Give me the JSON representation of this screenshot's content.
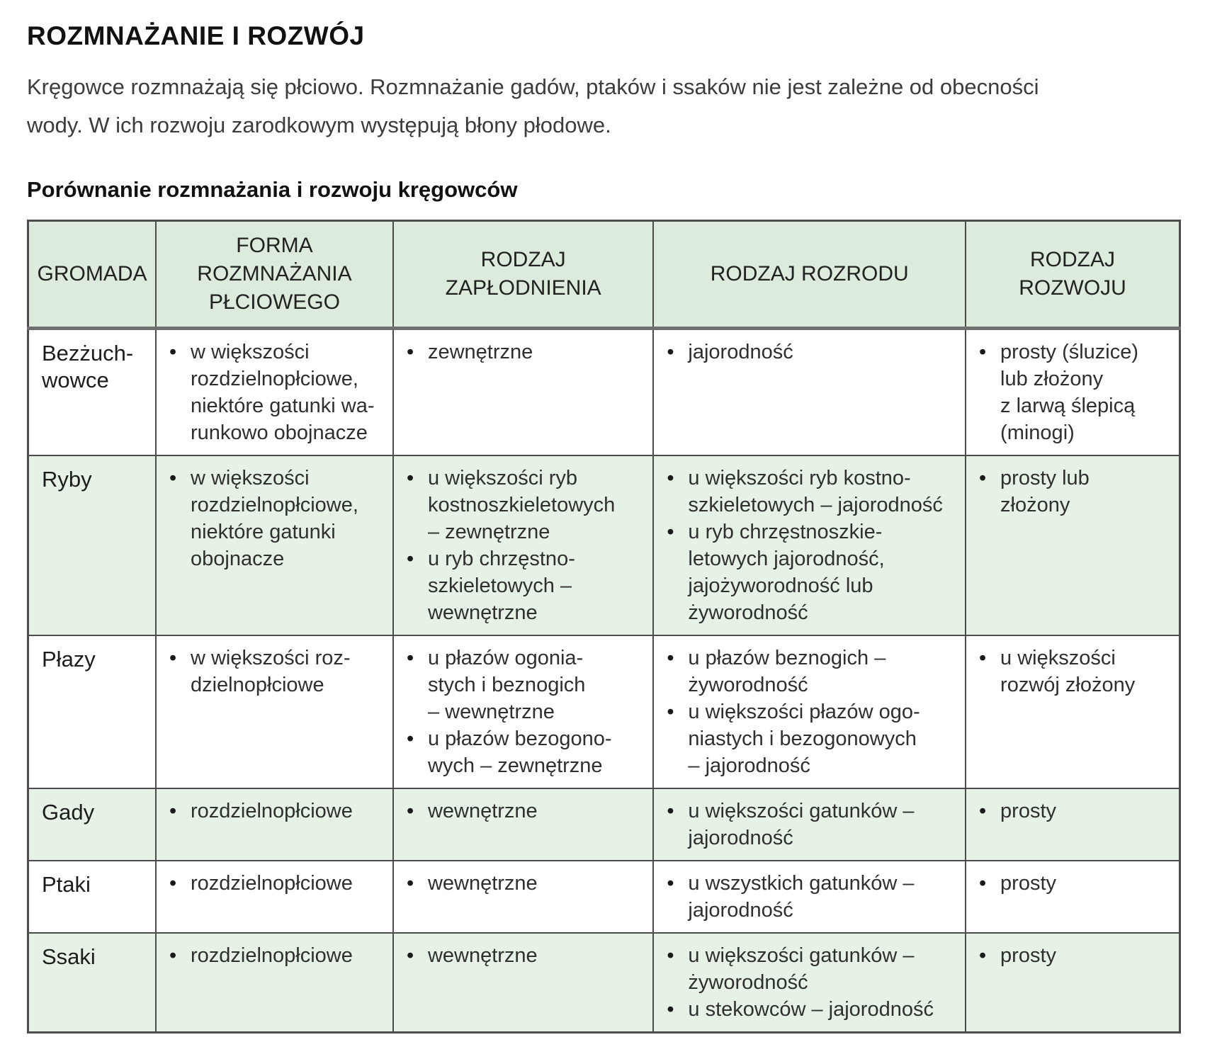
{
  "header": {
    "title": "ROZMNAŻANIE I ROZWÓJ",
    "intro": "Kręgowce rozmnażają się płciowo. Rozmnażanie gadów, ptaków i ssaków nie jest zależne od obecności\nwody. W ich rozwoju zarodkowym występują błony płodowe."
  },
  "colors": {
    "header_background": "#dcebdb",
    "stripe_background": "#e7f2e7",
    "border": "#4c4c4c",
    "thick_border": "#6f6f6f"
  },
  "table": {
    "caption": "Porównanie rozmnażania i rozwoju kręgowców",
    "columns": [
      "GROMADA",
      "FORMA\nROZMNAŻANIA\nPŁCIOWEGO",
      "RODZAJ\nZAPŁODNIENIA",
      "RODZAJ ROZRODU",
      "RODZAJ\nROZWOJU"
    ],
    "rows": [
      {
        "group": "Bezżuch-\nwowce",
        "cells": [
          [
            "w większości\nrozdzielnopłciowe,\nniektóre gatunki wa-\nrunkowo obojnacze"
          ],
          [
            "zewnętrzne"
          ],
          [
            "jajorodność"
          ],
          [
            "prosty (śluzice)\nlub złożony\nz larwą ślepicą\n(minogi)"
          ]
        ]
      },
      {
        "group": "Ryby",
        "cells": [
          [
            "w większości\nrozdzielnopłciowe,\nniektóre gatunki\nobojnacze"
          ],
          [
            "u większości ryb\nkostnoszkieletowych\n– zewnętrzne",
            "u ryb chrzęstno-\nszkieletowych –\nwewnętrzne"
          ],
          [
            "u większości ryb kostno-\nszkieletowych – jajorodność",
            "u ryb chrzęstnoszkie-\nletowych jajorodność,\njajożyworodność lub\nżyworodność"
          ],
          [
            "prosty lub\nzłożony"
          ]
        ]
      },
      {
        "group": "Płazy",
        "cells": [
          [
            "w większości roz-\ndzielnopłciowe"
          ],
          [
            "u płazów ogonia-\nstych i beznogich\n– wewnętrzne",
            "u płazów bezogono-\nwych – zewnętrzne"
          ],
          [
            "u płazów beznogich –\nżyworodność",
            "u większości płazów ogo-\nniastych i bezogonowych\n– jajorodność"
          ],
          [
            "u większości\nrozwój złożony"
          ]
        ]
      },
      {
        "group": "Gady",
        "cells": [
          [
            "rozdzielnopłciowe"
          ],
          [
            "wewnętrzne"
          ],
          [
            "u większości gatunków –\njajorodność"
          ],
          [
            "prosty"
          ]
        ]
      },
      {
        "group": "Ptaki",
        "cells": [
          [
            "rozdzielnopłciowe"
          ],
          [
            "wewnętrzne"
          ],
          [
            "u wszystkich gatunków –\njajorodność"
          ],
          [
            "prosty"
          ]
        ]
      },
      {
        "group": "Ssaki",
        "cells": [
          [
            "rozdzielnopłciowe"
          ],
          [
            "wewnętrzne"
          ],
          [
            "u większości gatunków –\nżyworodność",
            "u stekowców – jajorodność"
          ],
          [
            "prosty"
          ]
        ]
      }
    ]
  }
}
